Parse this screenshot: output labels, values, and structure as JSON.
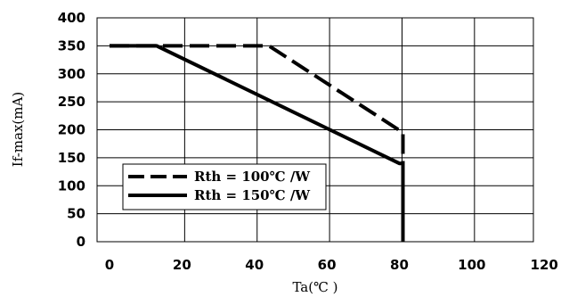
{
  "chart_data": {
    "type": "line",
    "xlabel": "Ta(℃ )",
    "ylabel": "If-max(mA)",
    "xlim": [
      0,
      120
    ],
    "ylim": [
      0,
      400
    ],
    "xticks": [
      "0",
      "20",
      "40",
      "60",
      "80",
      "100",
      "120"
    ],
    "yticks": [
      "0",
      "50",
      "100",
      "150",
      "200",
      "250",
      "300",
      "350",
      "400"
    ],
    "grid": true,
    "legend_position": "bottom-left",
    "series": [
      {
        "name": "Rth = 100℃ /W",
        "style": "dashed",
        "color": "#000000",
        "points": [
          [
            0,
            350
          ],
          [
            44,
            350
          ],
          [
            81,
            195
          ],
          [
            81,
            0
          ]
        ]
      },
      {
        "name": "Rth = 150℃ /W",
        "style": "solid",
        "color": "#000000",
        "points": [
          [
            0,
            350
          ],
          [
            13,
            350
          ],
          [
            80,
            140
          ],
          [
            81,
            140
          ],
          [
            81,
            0
          ]
        ]
      }
    ]
  }
}
